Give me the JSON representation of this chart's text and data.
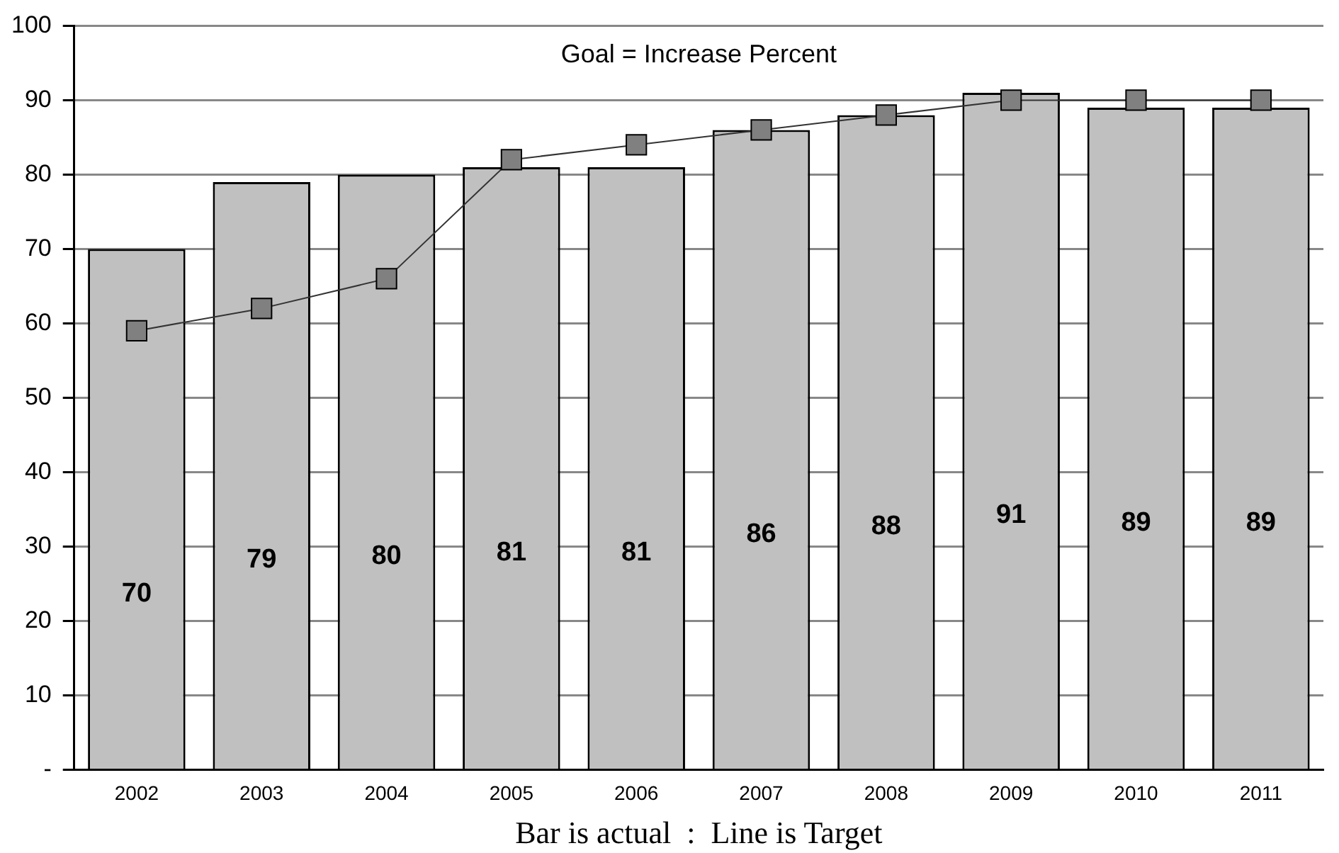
{
  "chart_data": {
    "type": "bar",
    "title": "Goal = Increase Percent",
    "categories": [
      "2002",
      "2003",
      "2004",
      "2005",
      "2006",
      "2007",
      "2008",
      "2009",
      "2010",
      "2011"
    ],
    "series": [
      {
        "color": "#c0c0c0",
        "values": [
          70,
          79,
          80,
          81,
          81,
          86,
          88,
          91,
          89,
          89
        ],
        "value_labels": [
          "70",
          "79",
          "80",
          "81",
          "81",
          "86",
          "88",
          "91",
          "89",
          "89"
        ]
      },
      {
        "type": "line",
        "color": "#808080",
        "values": [
          59,
          62,
          66,
          82,
          84,
          86,
          88,
          90,
          90,
          90
        ],
        "marker": "square"
      }
    ],
    "ylim": [
      0,
      100
    ],
    "yticks": [
      {
        "value": 0,
        "label": "-"
      },
      10,
      20,
      30,
      40,
      50,
      60,
      70,
      80,
      90,
      100
    ],
    "grid": "y",
    "legend": false,
    "annotations": [
      "Bar is actual  :  Line is Target"
    ]
  }
}
